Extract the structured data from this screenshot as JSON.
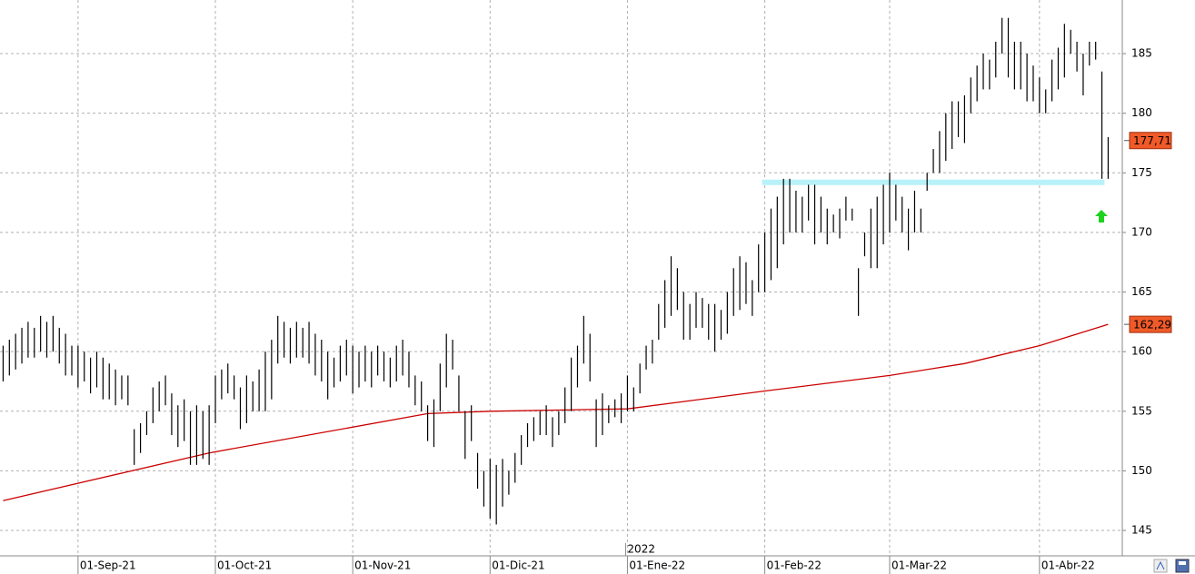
{
  "chart_data": {
    "type": "hilo",
    "ylim": [
      142.87,
      189.5
    ],
    "yticks": [
      145,
      150,
      155,
      160,
      165,
      170,
      175,
      180,
      185
    ],
    "grid": true,
    "color": "#000000",
    "year_label": "2022",
    "categories": [
      null,
      null,
      null,
      null,
      null,
      null,
      null,
      null,
      null,
      null,
      null,
      null,
      "01-Sep-21",
      null,
      null,
      null,
      null,
      null,
      null,
      null,
      null,
      null,
      null,
      null,
      null,
      null,
      null,
      null,
      null,
      null,
      null,
      null,
      null,
      null,
      "01-Oct-21",
      null,
      null,
      null,
      null,
      null,
      null,
      null,
      null,
      null,
      null,
      null,
      null,
      null,
      null,
      null,
      null,
      null,
      null,
      null,
      null,
      null,
      "01-Nov-21",
      null,
      null,
      null,
      null,
      null,
      null,
      null,
      null,
      null,
      null,
      null,
      null,
      null,
      null,
      null,
      null,
      null,
      null,
      null,
      null,
      null,
      "01-Dic-21",
      null,
      null,
      null,
      null,
      null,
      null,
      null,
      null,
      null,
      null,
      null,
      null,
      null,
      null,
      null,
      null,
      null,
      null,
      null,
      null,
      null,
      "01-Ene-22",
      null,
      null,
      null,
      null,
      null,
      null,
      null,
      null,
      null,
      null,
      null,
      null,
      null,
      null,
      null,
      null,
      null,
      null,
      null,
      null,
      null,
      "01-Feb-22",
      null,
      null,
      null,
      null,
      null,
      null,
      null,
      null,
      null,
      null,
      null,
      null,
      null,
      null,
      null,
      null,
      null,
      null,
      null,
      "01-Mar-22",
      null,
      null,
      null,
      null,
      null,
      null,
      null,
      null,
      null,
      null,
      null,
      null,
      null,
      null,
      null,
      null,
      null,
      null,
      null,
      null,
      null,
      null,
      null,
      "01-Abr-22",
      null,
      null,
      null,
      null,
      null,
      null,
      null,
      null,
      null,
      null,
      null
    ],
    "high": [
      160.5,
      161,
      161.5,
      162,
      162.5,
      162,
      163,
      162.5,
      163,
      162,
      161.5,
      160.5,
      160.5,
      160,
      159.5,
      160,
      159.5,
      159,
      158.5,
      158,
      158,
      153.5,
      154,
      155,
      157,
      157.5,
      158,
      156.5,
      155.5,
      156,
      155,
      155.5,
      155,
      155.5,
      158,
      158.5,
      159,
      158,
      157,
      158,
      157.5,
      158.5,
      160,
      161,
      163,
      162.5,
      162,
      162.5,
      162,
      162.5,
      161.5,
      161,
      160,
      159.5,
      160.5,
      161,
      160.5,
      160,
      160.5,
      160,
      160.5,
      160,
      159.5,
      160.5,
      161,
      160,
      158,
      157.5,
      155.5,
      156,
      159,
      161.5,
      161,
      158,
      155,
      155.5,
      151.5,
      150,
      151,
      150.5,
      151,
      150,
      151.5,
      153,
      154,
      154.5,
      155,
      155.5,
      154.5,
      155,
      157,
      159.5,
      160.5,
      163,
      161.5,
      156,
      156.5,
      155.5,
      156,
      156.5,
      158,
      157,
      159,
      160.5,
      161,
      164,
      166,
      168,
      167,
      165,
      164,
      165,
      164.5,
      164,
      164,
      163.5,
      165,
      167,
      168,
      167.5,
      166,
      169,
      170,
      172,
      173,
      174.5,
      174.5,
      173.5,
      173,
      174,
      174,
      173,
      172,
      171.5,
      172,
      173,
      172,
      167,
      170,
      172,
      173,
      174,
      175,
      174,
      173,
      172,
      173.5,
      172,
      175,
      177,
      178.5,
      180,
      181,
      181,
      181.5,
      183,
      184,
      185,
      184.5,
      186,
      188,
      188,
      186,
      186,
      185,
      184,
      183,
      182,
      184.5,
      185.5,
      187.5,
      187,
      186,
      185,
      186,
      186,
      183.5,
      178
    ],
    "low": [
      157.5,
      158,
      158.5,
      159,
      159.5,
      159.5,
      160,
      159.5,
      160,
      159,
      158,
      158,
      157,
      157.5,
      156.5,
      157,
      156,
      156,
      155.5,
      156,
      155.5,
      150.5,
      151.5,
      153,
      154,
      155,
      155.5,
      153,
      152,
      152.5,
      150.5,
      150.5,
      151,
      150.5,
      154,
      156,
      156.5,
      156,
      153.5,
      154,
      155,
      155,
      155,
      156,
      159,
      159.5,
      159,
      159.5,
      159.5,
      159,
      158,
      157.5,
      156,
      157,
      157.5,
      158,
      156.5,
      157,
      157.5,
      157,
      158,
      157.5,
      157,
      157.5,
      158,
      157,
      155.5,
      155,
      152.5,
      152,
      155,
      157,
      158.5,
      155,
      151,
      152.5,
      148.5,
      147,
      146,
      145.5,
      147,
      148,
      149,
      150.5,
      152,
      152.5,
      153,
      153,
      152,
      153,
      154,
      155,
      157,
      159,
      157.5,
      152,
      153,
      154,
      154.5,
      154,
      155,
      155,
      156.5,
      158.5,
      159,
      161,
      162,
      163,
      163.5,
      161,
      161,
      162,
      162,
      161,
      160,
      161,
      161.5,
      163,
      163.5,
      164,
      163,
      165,
      165,
      166,
      167,
      169,
      170,
      170,
      170,
      171,
      169,
      170,
      169,
      170,
      169.5,
      171,
      171,
      163,
      168,
      167,
      167,
      169,
      170,
      171,
      170,
      168.5,
      170,
      170,
      173.5,
      175,
      175,
      176,
      177,
      178,
      177.5,
      180,
      181,
      182,
      182,
      183,
      185,
      183,
      182,
      182,
      181,
      181,
      180,
      180,
      181,
      182,
      183,
      185,
      183.5,
      181.5,
      184,
      184.5,
      174.5,
      174.5
    ],
    "ma": {
      "color": "#cc0000",
      "x": [
        0,
        33,
        68,
        78,
        100,
        122,
        142,
        154,
        166,
        177
      ],
      "values": [
        147.5,
        151.5,
        154.8,
        155,
        155.2,
        156.7,
        158,
        159,
        160.5,
        162.29
      ],
      "label": "162,29"
    },
    "last_price": {
      "value": 177.71,
      "label": "177,71"
    },
    "support": {
      "value": 174.2,
      "color": "#b8f2f8"
    },
    "tag_color": "#f05a28"
  }
}
